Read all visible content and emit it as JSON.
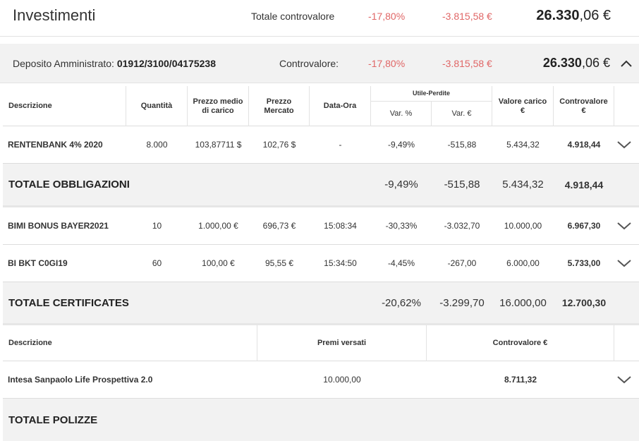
{
  "header": {
    "title": "Investimenti",
    "total_label": "Totale controvalore",
    "var_pct": "-17,80%",
    "var_abs": "-3.815,58 €",
    "total_int": "26.330",
    "total_dec": ",06 €"
  },
  "deposit": {
    "label": "Deposito Amministrato: ",
    "number": "01912/3100/04175238",
    "cv_label": "Controvalore:",
    "var_pct": "-17,80%",
    "var_abs": "-3.815,58 €",
    "total_int": "26.330",
    "total_dec": ",06 €"
  },
  "table_headers": {
    "descrizione": "Descrizione",
    "quantita": "Quantità",
    "prezzo_medio": "Prezzo medio di carico",
    "prezzo_mercato": "Prezzo Mercato",
    "data_ora": "Data-Ora",
    "utile_perdite": "Utile-Perdite",
    "var_pct": "Var. %",
    "var_eur": "Var. €",
    "valore_carico": "Valore carico €",
    "controvalore": "Controvalore €"
  },
  "obbligazioni": {
    "rows": [
      {
        "name": "RENTENBANK 4% 2020",
        "qty": "8.000",
        "pmc": "103,87711 $",
        "pm": "102,76 $",
        "dt": "-",
        "vpct": "-9,49%",
        "veur": "-515,88",
        "vc": "5.434,32",
        "cv": "4.918,44"
      }
    ],
    "total": {
      "label": "TOTALE OBBLIGAZIONI",
      "vpct": "-9,49%",
      "veur": "-515,88",
      "vc": "5.434,32",
      "cv": "4.918,44"
    }
  },
  "certificates": {
    "rows": [
      {
        "name": "BIMI BONUS BAYER2021",
        "qty": "10",
        "pmc": "1.000,00 €",
        "pm": "696,73 €",
        "dt": "15:08:34",
        "vpct": "-30,33%",
        "veur": "-3.032,70",
        "vc": "10.000,00",
        "cv": "6.967,30"
      },
      {
        "name": "BI BKT C0GI19",
        "qty": "60",
        "pmc": "100,00 €",
        "pm": "95,55 €",
        "dt": "15:34:50",
        "vpct": "-4,45%",
        "veur": "-267,00",
        "vc": "6.000,00",
        "cv": "5.733,00"
      }
    ],
    "total": {
      "label": "TOTALE CERTIFICATES",
      "vpct": "-20,62%",
      "veur": "-3.299,70",
      "vc": "16.000,00",
      "cv": "12.700,30"
    }
  },
  "polizze": {
    "headers": {
      "descrizione": "Descrizione",
      "premi": "Premi versati",
      "controvalore": "Controvalore €"
    },
    "rows": [
      {
        "name": "Intesa Sanpaolo Life Prospettiva 2.0",
        "premi": "10.000,00",
        "cv": "8.711,32"
      }
    ],
    "total": {
      "label": "TOTALE POLIZZE"
    }
  },
  "colors": {
    "negative": "#e06666",
    "band": "#f2f2f2",
    "border": "#dddddd"
  },
  "icons": {
    "expand": "chevron-down-icon",
    "collapse": "chevron-up-icon"
  }
}
